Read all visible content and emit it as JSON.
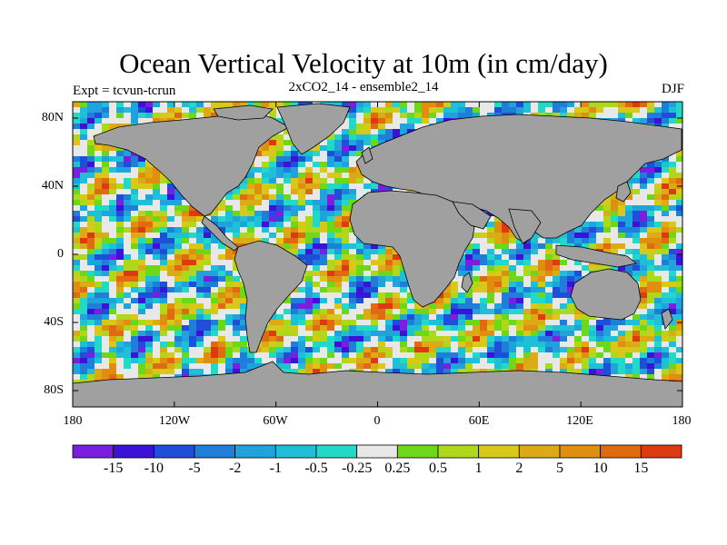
{
  "map": {
    "title": "Ocean Vertical Velocity at 10m (in cm/day)",
    "subtitle": "2xCO2_14 - ensemble2_14",
    "experiment": "Expt = tcvun-tcrun",
    "season": "DJF",
    "lat_ticks": [
      "80N",
      "40N",
      "0",
      "40S",
      "80S"
    ],
    "lon_ticks": [
      "180",
      "120W",
      "60W",
      "0",
      "60E",
      "120E",
      "180"
    ],
    "land_color": "#a0a0a0",
    "coastline_color": "#000000"
  },
  "colorbar": {
    "colors": [
      "#7a1ee0",
      "#3a12d8",
      "#1f4fd8",
      "#1f7fd8",
      "#1fa3dc",
      "#1fbfd8",
      "#22d8c6",
      "#e8e8e8",
      "#6cd818",
      "#b0d81a",
      "#d8c81a",
      "#dcaa14",
      "#e08e10",
      "#e06a10",
      "#dc3a10"
    ],
    "labels": [
      "-15",
      "-10",
      "-5",
      "-2",
      "-1",
      "-0.5",
      "-0.25",
      "0.25",
      "0.5",
      "1",
      "2",
      "5",
      "10",
      "15"
    ]
  }
}
